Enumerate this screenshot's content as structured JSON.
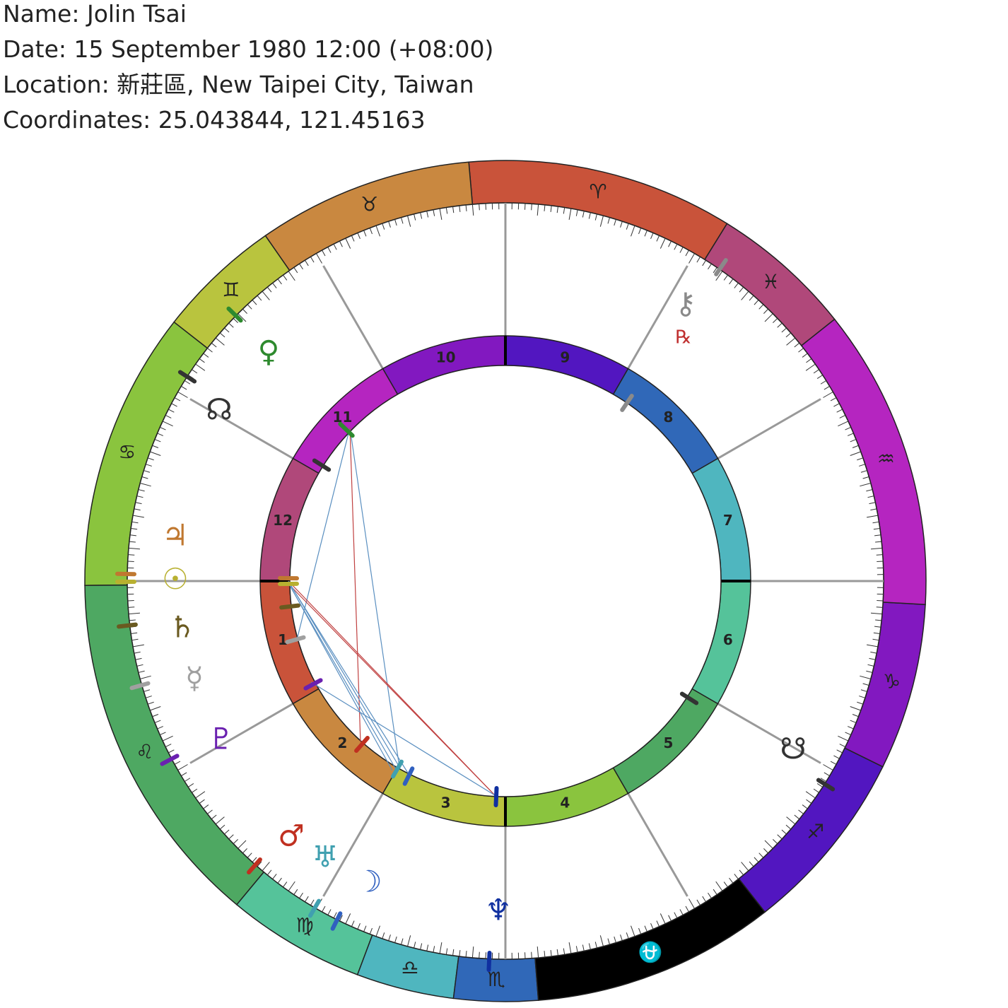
{
  "header": {
    "name": "Name: Jolin Tsai",
    "date": "Date: 15 September 1980 12:00 (+08:00)",
    "location": "Location: 新莊區, New Taipei City, Taiwan",
    "coordinates": "Coordinates: 25.043844, 121.45163"
  },
  "zodiac": [
    {
      "glyph": "♈",
      "color": "#c9533a"
    },
    {
      "glyph": "♉",
      "color": "#c98840"
    },
    {
      "glyph": "♊",
      "color": "#b9c43e"
    },
    {
      "glyph": "♋",
      "color": "#8ac43e"
    },
    {
      "glyph": "♌",
      "color": "#4ea862"
    },
    {
      "glyph": "♍",
      "color": "#55c39a"
    },
    {
      "glyph": "♎",
      "color": "#4fb6bf"
    },
    {
      "glyph": "♏",
      "color": "#3068b8"
    },
    {
      "glyph": "⛎",
      "color": "#000000"
    },
    {
      "glyph": "♐",
      "color": "#5216c0"
    },
    {
      "glyph": "♑",
      "color": "#8218c0"
    },
    {
      "glyph": "♒",
      "color": "#b525c0"
    },
    {
      "glyph": "♓",
      "color": "#b0487a"
    }
  ],
  "houses": [
    {
      "label": "1",
      "color": "#c9533a"
    },
    {
      "label": "2",
      "color": "#c98840"
    },
    {
      "label": "3",
      "color": "#b9c43e"
    },
    {
      "label": "4",
      "color": "#8ac43e"
    },
    {
      "label": "5",
      "color": "#4ea862"
    },
    {
      "label": "6",
      "color": "#55c39a"
    },
    {
      "label": "7",
      "color": "#4fb6bf"
    },
    {
      "label": "8",
      "color": "#3068b8"
    },
    {
      "label": "9",
      "color": "#5216c0"
    },
    {
      "label": "10",
      "color": "#8218c0"
    },
    {
      "label": "11",
      "color": "#b525c0"
    },
    {
      "label": "12",
      "color": "#b0487a"
    }
  ],
  "planets": [
    {
      "glyph": "⚷",
      "color": "#8a8a8a"
    },
    {
      "glyph": "♀",
      "color": "#2e8a2e"
    },
    {
      "glyph": "☊",
      "color": "#333333"
    },
    {
      "glyph": "♃",
      "color": "#c07830"
    },
    {
      "glyph": "☉",
      "color": "#b8b030"
    },
    {
      "glyph": "♄",
      "color": "#6a5a20"
    },
    {
      "glyph": "☿",
      "color": "#a0a0a0"
    },
    {
      "glyph": "♇",
      "color": "#6a20b0"
    },
    {
      "glyph": "♂",
      "color": "#c03020"
    },
    {
      "glyph": "♅",
      "color": "#40a0b0"
    },
    {
      "glyph": "☽",
      "color": "#3060c0"
    },
    {
      "glyph": "♆",
      "color": "#1030a0"
    },
    {
      "glyph": "☋",
      "color": "#333333"
    }
  ],
  "retrograde": "℞"
}
